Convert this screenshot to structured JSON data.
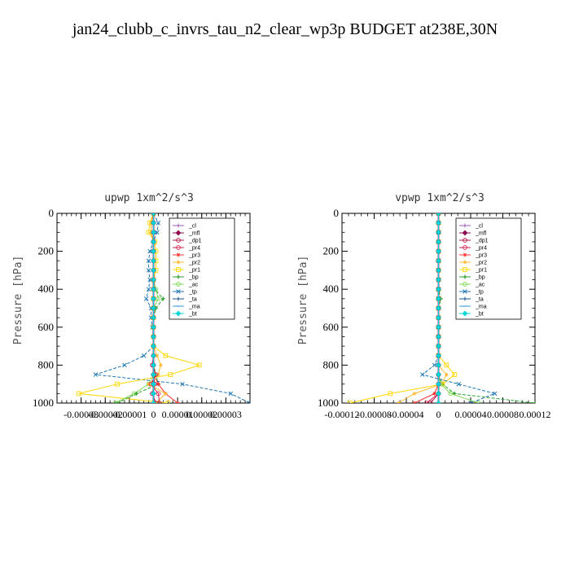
{
  "figure": {
    "title": "jan24_clubb_c_invrs_tau_n2_clear_wp3p  BUDGET at238E,30N"
  },
  "legend_entries": [
    {
      "label": "_cl",
      "color": "#9b59b6",
      "marker": "plus"
    },
    {
      "label": "_mfl",
      "color": "#8b0a50",
      "marker": "diamond"
    },
    {
      "label": "_dp1",
      "color": "#b0174b",
      "marker": "circle"
    },
    {
      "label": "_pr4",
      "color": "#d6204d",
      "marker": "circle"
    },
    {
      "label": "_pr3",
      "color": "#ff3030",
      "marker": "star"
    },
    {
      "label": "_pr2",
      "color": "#ffbb33",
      "marker": "star"
    },
    {
      "label": "_pr1",
      "color": "#ffd700",
      "marker": "square"
    },
    {
      "label": "_bp",
      "color": "#2ca02c",
      "marker": "cross"
    },
    {
      "label": "_ac",
      "color": "#7ed957",
      "marker": "circle"
    },
    {
      "label": "_tp",
      "color": "#1f77b4",
      "marker": "x"
    },
    {
      "label": "_ta",
      "color": "#1a4f8b",
      "marker": "plus"
    },
    {
      "label": "_ma",
      "color": "#3498db",
      "marker": "dash"
    },
    {
      "label": "_bt",
      "color": "#00d5d5",
      "marker": "diamond"
    }
  ],
  "chart_data": [
    {
      "type": "line",
      "title": "upwp   1xm^2/s^3",
      "ylabel": "Pressure [hPa]",
      "xlabel": "",
      "xlim": [
        -4e-05,
        4e-05
      ],
      "ylim": [
        1000,
        0
      ],
      "yticks": [
        0,
        200,
        400,
        600,
        800,
        1000
      ],
      "xticks": [
        -3e-05,
        -2e-05,
        -1e-05,
        0,
        1e-05,
        2e-05,
        3e-05
      ],
      "xtick_labels": [
        "-0.00003",
        "-0.00002",
        "-0.00001",
        "0",
        "0.00001",
        "0.00002",
        "0.00003"
      ],
      "grid": false,
      "legend_position": "top-right",
      "levels": [
        0,
        50,
        100,
        150,
        200,
        250,
        300,
        350,
        400,
        450,
        500,
        550,
        600,
        650,
        700,
        750,
        800,
        850,
        900,
        950,
        1000
      ],
      "series": [
        {
          "name": "_cl",
          "values": [
            0,
            0,
            0,
            0,
            0,
            0,
            0,
            0,
            0,
            0,
            0,
            0,
            0,
            0,
            0,
            0,
            0,
            0,
            0,
            0,
            0
          ]
        },
        {
          "name": "_mfl",
          "values": [
            0,
            0,
            0,
            0,
            0,
            0,
            0,
            0,
            0,
            0,
            0,
            0,
            0,
            0,
            0,
            0,
            0,
            0,
            0,
            0,
            0
          ]
        },
        {
          "name": "_dp1",
          "values": [
            0,
            0,
            0,
            0,
            0,
            0,
            0,
            0,
            0,
            0,
            0,
            0,
            0,
            0,
            0,
            0,
            0,
            0,
            5e-07,
            -5e-07,
            1e-06
          ]
        },
        {
          "name": "_pr4",
          "values": [
            0,
            0,
            0,
            0,
            0,
            0,
            0,
            0,
            0,
            0,
            0,
            0,
            0,
            0,
            0,
            0,
            -5e-07,
            1e-06,
            -1e-06,
            2e-06,
            2.5e-06
          ]
        },
        {
          "name": "_pr3",
          "values": [
            0,
            0,
            0,
            0,
            0,
            0,
            0,
            0,
            0,
            0,
            0,
            0,
            0,
            0,
            0,
            0,
            0,
            0,
            2e-06,
            5e-06,
            1e-05
          ]
        },
        {
          "name": "_pr2",
          "values": [
            0,
            -1e-06,
            -1e-06,
            0,
            0,
            0,
            0,
            0,
            0,
            0,
            0,
            0,
            0,
            0,
            0,
            1.5e-06,
            3e-06,
            2e-06,
            -2e-06,
            5e-06,
            1e-06
          ]
        },
        {
          "name": "_pr1",
          "values": [
            0,
            -1.5e-06,
            -2e-06,
            5e-07,
            1e-06,
            1e-06,
            1e-06,
            0,
            0,
            0,
            0,
            0,
            0,
            0,
            0,
            5e-06,
            1.9e-05,
            7e-06,
            -1.5e-05,
            -3.1e-05,
            6e-06
          ]
        },
        {
          "name": "_bp",
          "values": [
            0,
            0,
            0,
            0,
            0,
            0,
            0,
            0,
            5e-07,
            4e-06,
            1e-06,
            0,
            0,
            0,
            0,
            0,
            0,
            1e-06,
            2e-06,
            -7e-06,
            -1.5e-05
          ]
        },
        {
          "name": "_ac",
          "values": [
            0,
            0,
            0,
            0,
            0,
            0,
            0,
            0,
            1e-06,
            2e-06,
            0,
            0,
            0,
            0,
            0,
            0,
            0,
            0,
            -2e-06,
            -8e-06,
            -1.6e-05
          ]
        },
        {
          "name": "_tp",
          "values": [
            0,
            2e-06,
            1.5e-06,
            0,
            -1.5e-06,
            -2e-06,
            -2e-06,
            -1.5e-06,
            -2e-06,
            -3e-06,
            -1e-06,
            -1e-06,
            -5e-07,
            0,
            0,
            -4e-06,
            -1.2e-05,
            -2.4e-05,
            1.2e-05,
            3.2e-05,
            4e-05
          ]
        },
        {
          "name": "_ta",
          "values": [
            0,
            0,
            0,
            0,
            0,
            0,
            0,
            0,
            0,
            0,
            0,
            0,
            0,
            0,
            0,
            0,
            0,
            0,
            0,
            0,
            0
          ]
        },
        {
          "name": "_ma",
          "values": [
            0,
            0,
            0,
            0,
            0,
            0,
            0,
            0,
            0,
            0,
            0,
            0,
            0,
            0,
            0,
            0,
            0,
            0,
            0,
            0,
            0
          ]
        },
        {
          "name": "_bt",
          "values": [
            0,
            0,
            0,
            0,
            0,
            0,
            0,
            0,
            0,
            0,
            0,
            0,
            0,
            0,
            0,
            0,
            0,
            0,
            0,
            0,
            0
          ]
        }
      ]
    },
    {
      "type": "line",
      "title": "vpwp   1xm^2/s^3",
      "ylabel": "Pressure [hPa]",
      "xlabel": "",
      "xlim": [
        -0.00012,
        0.00012
      ],
      "ylim": [
        1000,
        0
      ],
      "yticks": [
        0,
        200,
        400,
        600,
        800,
        1000
      ],
      "xticks": [
        -0.00012,
        -8e-05,
        -4e-05,
        0,
        4e-05,
        8e-05,
        0.00012
      ],
      "xtick_labels": [
        "-0.00012",
        "-0.00008",
        "-0.00004",
        "0",
        "0.00004",
        "0.00008",
        "0.00012"
      ],
      "grid": false,
      "legend_position": "top-right",
      "levels": [
        0,
        50,
        100,
        150,
        200,
        250,
        300,
        350,
        400,
        450,
        500,
        550,
        600,
        650,
        700,
        750,
        800,
        850,
        900,
        950,
        1000
      ],
      "series": [
        {
          "name": "_cl",
          "values": [
            0,
            0,
            0,
            0,
            0,
            0,
            0,
            0,
            0,
            0,
            0,
            0,
            0,
            0,
            0,
            0,
            0,
            0,
            0,
            0,
            0
          ]
        },
        {
          "name": "_mfl",
          "values": [
            0,
            0,
            0,
            0,
            0,
            0,
            0,
            0,
            0,
            0,
            0,
            0,
            0,
            0,
            0,
            0,
            0,
            0,
            0,
            0,
            0
          ]
        },
        {
          "name": "_dp1",
          "values": [
            0,
            0,
            0,
            0,
            0,
            0,
            0,
            0,
            0,
            0,
            0,
            0,
            0,
            0,
            0,
            0,
            0,
            0,
            0,
            0,
            -1e-05
          ]
        },
        {
          "name": "_pr4",
          "values": [
            0,
            0,
            0,
            0,
            0,
            0,
            0,
            0,
            0,
            0,
            0,
            0,
            0,
            0,
            0,
            0,
            0,
            0,
            0,
            0,
            -1.5e-05
          ]
        },
        {
          "name": "_pr3",
          "values": [
            0,
            0,
            0,
            0,
            0,
            0,
            0,
            0,
            0,
            0,
            0,
            0,
            0,
            0,
            0,
            0,
            0,
            0,
            0,
            -5e-06,
            -3e-05
          ]
        },
        {
          "name": "_pr2",
          "values": [
            0,
            0,
            0,
            0,
            0,
            0,
            0,
            0,
            0,
            0,
            0,
            0,
            0,
            0,
            0,
            0,
            0,
            1e-05,
            4e-06,
            -3e-05,
            -5e-05
          ]
        },
        {
          "name": "_pr1",
          "values": [
            0,
            0,
            0,
            0,
            0,
            0,
            0,
            0,
            0,
            0,
            0,
            0,
            0,
            0,
            0,
            0,
            1e-05,
            2e-05,
            5e-06,
            -6e-05,
            -0.00011
          ]
        },
        {
          "name": "_bp",
          "values": [
            0,
            0,
            0,
            0,
            0,
            0,
            0,
            0,
            0,
            3e-06,
            0,
            0,
            0,
            0,
            0,
            0,
            0,
            0,
            5e-06,
            2e-05,
            0.00012
          ]
        },
        {
          "name": "_ac",
          "values": [
            0,
            0,
            0,
            0,
            0,
            0,
            0,
            0,
            0,
            0,
            0,
            0,
            0,
            0,
            0,
            0,
            0,
            0,
            3e-06,
            1.5e-05,
            5e-05
          ]
        },
        {
          "name": "_tp",
          "values": [
            0,
            0,
            0,
            0,
            0,
            0,
            0,
            0,
            0,
            0,
            0,
            0,
            0,
            0,
            0,
            0,
            -5e-06,
            -2e-05,
            2.5e-05,
            7e-05,
            4e-05
          ]
        },
        {
          "name": "_ta",
          "values": [
            0,
            0,
            0,
            0,
            0,
            0,
            0,
            0,
            0,
            0,
            0,
            0,
            0,
            0,
            0,
            0,
            0,
            0,
            0,
            0,
            0
          ]
        },
        {
          "name": "_ma",
          "values": [
            0,
            0,
            0,
            0,
            0,
            0,
            0,
            0,
            0,
            0,
            0,
            0,
            0,
            0,
            0,
            0,
            0,
            0,
            0,
            0,
            0
          ]
        },
        {
          "name": "_bt",
          "values": [
            0,
            0,
            0,
            0,
            0,
            0,
            0,
            0,
            0,
            0,
            0,
            0,
            0,
            0,
            0,
            0,
            0,
            0,
            0,
            0,
            0
          ]
        }
      ]
    }
  ]
}
